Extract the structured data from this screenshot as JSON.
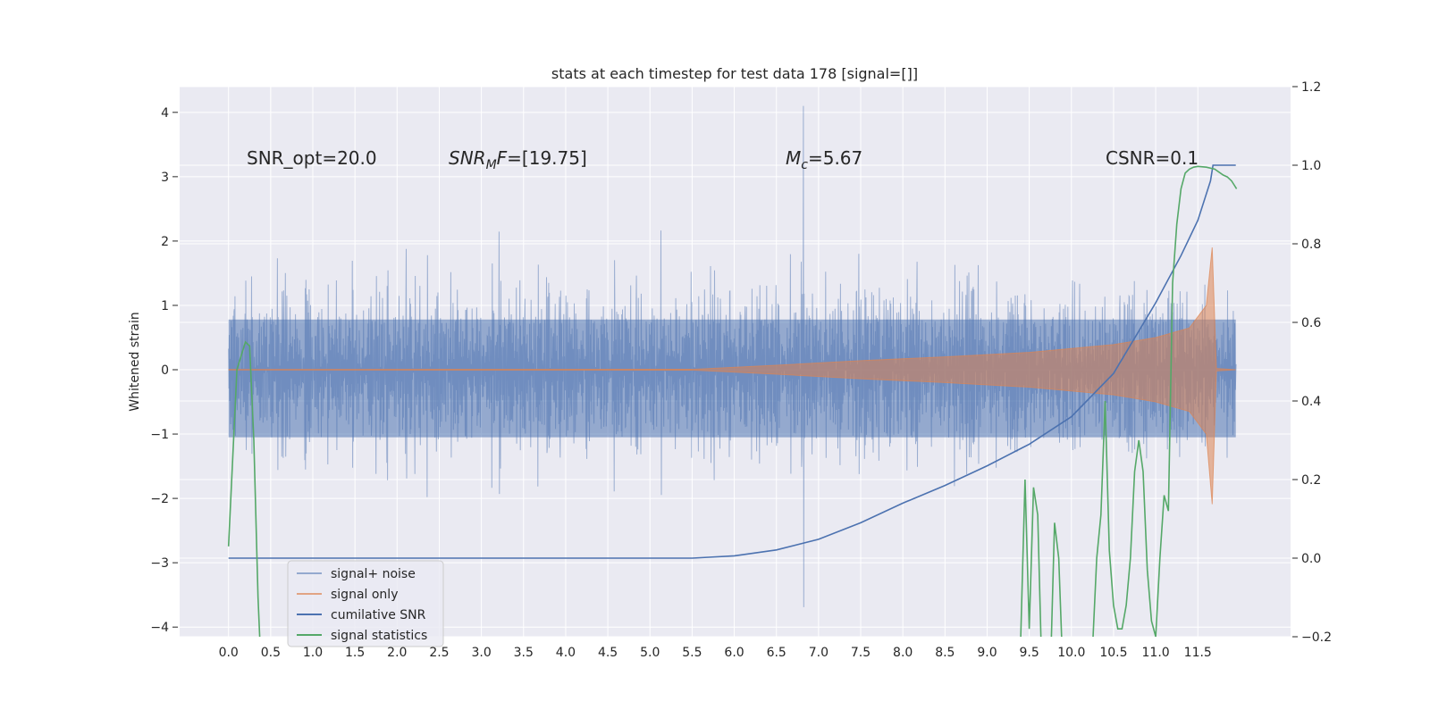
{
  "chart_data": {
    "type": "line",
    "title": "stats at each timestep for test data 178 [signal=[]]",
    "ylabel": "Whitened strain",
    "xlabel": "",
    "xlim": [
      -0.58,
      12.6
    ],
    "xticks": [
      "0.0",
      "0.5",
      "1.0",
      "1.5",
      "2.0",
      "2.5",
      "3.0",
      "3.5",
      "4.0",
      "4.5",
      "5.0",
      "5.5",
      "6.0",
      "6.5",
      "7.0",
      "7.5",
      "8.0",
      "8.5",
      "9.0",
      "9.5",
      "10.0",
      "10.5",
      "11.0",
      "11.5"
    ],
    "ylim_left": [
      -4.15,
      4.4
    ],
    "yticks_left": [
      "4",
      "3",
      "2",
      "1",
      "0",
      "−1",
      "−2",
      "−3",
      "−4"
    ],
    "ylim_right": [
      -0.2,
      1.2
    ],
    "yticks_right": [
      "1.2",
      "1.0",
      "0.8",
      "0.6",
      "0.4",
      "0.2",
      "0.0",
      "−0.2"
    ],
    "grid": true,
    "legend_position": "lower-left",
    "annotations": {
      "snr_opt": "SNR_opt=20.0",
      "snr_mf_base": "SNR",
      "snr_mf_sub": "M",
      "snr_mf_tail": "F=[19.75]",
      "mc_base": "M",
      "mc_sub": "c",
      "mc_tail": "=5.67",
      "csnr": "CSNR=0.1"
    },
    "series": [
      {
        "name": "signal+ noise",
        "axis": "left",
        "color": "#4c72b0",
        "description_values": {
          "t_start": 0.0,
          "t_end": 11.95,
          "typical_envelope": [
            -2.0,
            2.3
          ],
          "peak_max": 4.1,
          "peak_max_t": 6.82
        }
      },
      {
        "name": "signal only",
        "axis": "left",
        "color": "#dd8452",
        "envelope": {
          "t": [
            0.0,
            5.5,
            6.5,
            7.5,
            8.5,
            9.5,
            10.5,
            11.0,
            11.4,
            11.6,
            11.67,
            11.72,
            11.95
          ],
          "amp": [
            0.0,
            0.005,
            0.07,
            0.14,
            0.2,
            0.27,
            0.39,
            0.5,
            0.65,
            1.0,
            1.9,
            0.02,
            0.0
          ]
        }
      },
      {
        "name": "cumilative SNR",
        "axis": "right",
        "color": "#4c72b0",
        "x": [
          0.0,
          5.5,
          6.0,
          6.5,
          7.0,
          7.5,
          8.0,
          8.5,
          9.0,
          9.5,
          10.0,
          10.5,
          11.0,
          11.3,
          11.5,
          11.65,
          11.68,
          11.95
        ],
        "y": [
          0.0,
          0.0,
          0.006,
          0.021,
          0.048,
          0.09,
          0.14,
          0.185,
          0.235,
          0.29,
          0.36,
          0.47,
          0.65,
          0.77,
          0.86,
          0.96,
          1.0,
          1.0
        ]
      },
      {
        "name": "signal statistics",
        "axis": "right",
        "color": "#55a868",
        "x": [
          0.0,
          0.1,
          0.2,
          0.25,
          0.3,
          0.35,
          0.4,
          9.38,
          9.45,
          9.5,
          9.55,
          9.6,
          9.65,
          9.7,
          9.75,
          9.8,
          9.85,
          9.9,
          9.95,
          10.0,
          10.05,
          10.1,
          10.15,
          10.2,
          10.25,
          10.3,
          10.35,
          10.4,
          10.45,
          10.5,
          10.55,
          10.6,
          10.65,
          10.7,
          10.75,
          10.8,
          10.85,
          10.9,
          10.95,
          11.0,
          11.05,
          11.1,
          11.15,
          11.2,
          11.25,
          11.3,
          11.35,
          11.4,
          11.45,
          11.5,
          11.6,
          11.7,
          11.8,
          11.85,
          11.9,
          11.93,
          11.96
        ],
        "y": [
          0.03,
          0.48,
          0.55,
          0.54,
          0.3,
          -0.1,
          -0.35,
          -0.35,
          0.2,
          -0.18,
          0.18,
          0.11,
          -0.3,
          -0.3,
          -0.3,
          0.09,
          0.0,
          -0.3,
          -0.3,
          -0.3,
          -0.3,
          -0.3,
          -0.3,
          -0.3,
          -0.23,
          0.0,
          0.11,
          0.4,
          0.02,
          -0.12,
          -0.18,
          -0.18,
          -0.12,
          0.0,
          0.22,
          0.3,
          0.22,
          -0.03,
          -0.16,
          -0.2,
          0.0,
          0.16,
          0.12,
          0.7,
          0.85,
          0.94,
          0.98,
          0.99,
          0.995,
          0.997,
          0.995,
          0.99,
          0.975,
          0.97,
          0.96,
          0.95,
          0.94
        ]
      }
    ]
  }
}
